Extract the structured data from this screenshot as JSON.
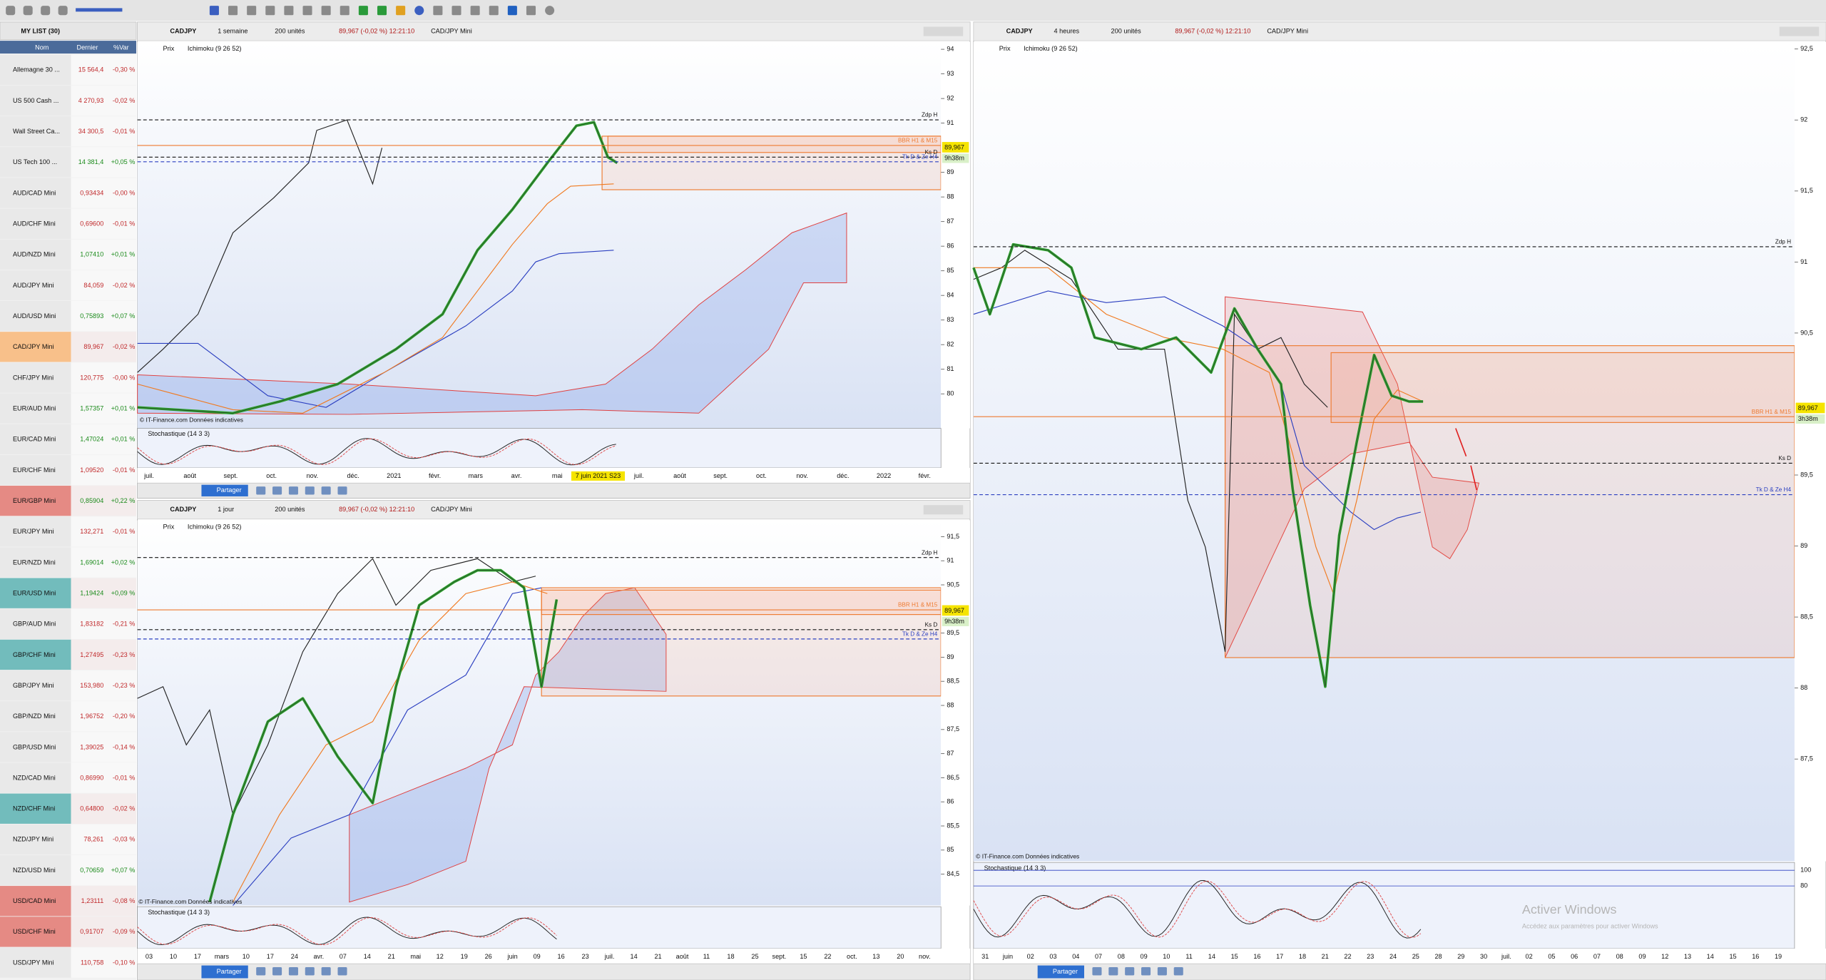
{
  "watchlist": {
    "title": "MY LIST (30)",
    "columns": [
      "Nom",
      "Dernier",
      "%Var"
    ],
    "rows": [
      {
        "name": "Allemagne 30 ...",
        "last": "15 564,4",
        "change": "-0,30 %"
      },
      {
        "name": "US 500 Cash ...",
        "last": "4 270,93",
        "change": "-0,02 %"
      },
      {
        "name": "Wall Street Ca...",
        "last": "34 300,5",
        "change": "-0,01 %"
      },
      {
        "name": "US Tech 100 ...",
        "last": "14 381,4",
        "change": "+0,05 %"
      },
      {
        "name": "AUD/CAD Mini",
        "last": "0,93434",
        "change": "-0,00 %"
      },
      {
        "name": "AUD/CHF Mini",
        "last": "0,69600",
        "change": "-0,01 %"
      },
      {
        "name": "AUD/NZD Mini",
        "last": "1,07410",
        "change": "+0,01 %"
      },
      {
        "name": "AUD/JPY Mini",
        "last": "84,059",
        "change": "-0,02 %"
      },
      {
        "name": "AUD/USD Mini",
        "last": "0,75893",
        "change": "+0,07 %"
      },
      {
        "name": "CAD/JPY Mini",
        "last": "89,967",
        "change": "-0,02 %",
        "color": "#f8c08a"
      },
      {
        "name": "CHF/JPY Mini",
        "last": "120,775",
        "change": "-0,00 %"
      },
      {
        "name": "EUR/AUD Mini",
        "last": "1,57357",
        "change": "+0,01 %"
      },
      {
        "name": "EUR/CAD Mini",
        "last": "1,47024",
        "change": "+0,01 %"
      },
      {
        "name": "EUR/CHF Mini",
        "last": "1,09520",
        "change": "-0,01 %"
      },
      {
        "name": "EUR/GBP Mini",
        "last": "0,85904",
        "change": "+0,22 %",
        "color": "#e58a84"
      },
      {
        "name": "EUR/JPY Mini",
        "last": "132,271",
        "change": "-0,01 %"
      },
      {
        "name": "EUR/NZD Mini",
        "last": "1,69014",
        "change": "+0,02 %"
      },
      {
        "name": "EUR/USD Mini",
        "last": "1,19424",
        "change": "+0,09 %",
        "color": "#72bcbc"
      },
      {
        "name": "GBP/AUD Mini",
        "last": "1,83182",
        "change": "-0,21 %"
      },
      {
        "name": "GBP/CHF Mini",
        "last": "1,27495",
        "change": "-0,23 %",
        "color": "#72bcbc"
      },
      {
        "name": "GBP/JPY Mini",
        "last": "153,980",
        "change": "-0,23 %"
      },
      {
        "name": "GBP/NZD Mini",
        "last": "1,96752",
        "change": "-0,20 %"
      },
      {
        "name": "GBP/USD Mini",
        "last": "1,39025",
        "change": "-0,14 %"
      },
      {
        "name": "NZD/CAD Mini",
        "last": "0,86990",
        "change": "-0,01 %"
      },
      {
        "name": "NZD/CHF Mini",
        "last": "0,64800",
        "change": "-0,02 %",
        "color": "#72bcbc"
      },
      {
        "name": "NZD/JPY Mini",
        "last": "78,261",
        "change": "-0,03 %"
      },
      {
        "name": "NZD/USD Mini",
        "last": "0,70659",
        "change": "+0,07 %"
      },
      {
        "name": "USD/CAD Mini",
        "last": "1,23111",
        "change": "-0,08 %",
        "color": "#e58a84"
      },
      {
        "name": "USD/CHF Mini",
        "last": "0,91707",
        "change": "-0,09 %",
        "color": "#e58a84"
      },
      {
        "name": "USD/JPY Mini",
        "last": "110,758",
        "change": "-0,10 %"
      }
    ]
  },
  "panels": [
    {
      "symbol": "CADJPY",
      "period": "1 semaine",
      "units": "200 unités",
      "quote": "89,967 (-0,02 %) 12:21:10",
      "instrument": "CAD/JPY Mini",
      "indicators": [
        "Prix",
        "Ichimoku (9 26 52)"
      ],
      "ylim": [
        78.6,
        94.3
      ],
      "yticks": [
        94,
        93,
        92,
        91,
        89,
        88,
        87,
        86,
        85,
        84,
        83,
        82,
        81,
        80
      ],
      "xlabels": [
        "juil.",
        "août",
        "sept.",
        "oct.",
        "nov.",
        "déc.",
        "2021",
        "févr.",
        "mars",
        "avr.",
        "mai",
        "7 juin 2021 S23",
        "juil.",
        "août",
        "sept.",
        "oct.",
        "nov.",
        "déc.",
        "2022",
        "févr."
      ],
      "levels": [
        "Zdp H",
        "BBR H1 & M15",
        "Ks D",
        "Tk D & Ze H4"
      ],
      "price_tag": "89,967",
      "timer": "9h38m",
      "oscillator": {
        "name": "Stochastique (14 3 3)"
      },
      "credit": "© IT-Finance.com Données indicatives",
      "share": "Partager"
    },
    {
      "symbol": "CADJPY",
      "period": "1 jour",
      "units": "200 unités",
      "quote": "89,967 (-0,02 %) 12:21:10",
      "instrument": "CAD/JPY Mini",
      "indicators": [
        "Prix",
        "Ichimoku (9 26 52)"
      ],
      "ylim": [
        83.85,
        91.84
      ],
      "yticks": [
        {
          "value": 91.5,
          "label": "91,5"
        },
        91,
        {
          "value": 90.5,
          "label": "90,5"
        },
        {
          "value": 89.5,
          "label": "89,5"
        },
        89,
        {
          "value": 88.5,
          "label": "88,5"
        },
        88,
        {
          "value": 87.5,
          "label": "87,5"
        },
        87,
        {
          "value": 86.5,
          "label": "86,5"
        },
        86,
        {
          "value": 85.5,
          "label": "85,5"
        },
        85,
        {
          "value": 84.5,
          "label": "84,5"
        }
      ],
      "xlabels": [
        "03",
        "10",
        "17",
        "mars",
        "10",
        "17",
        "24",
        "avr.",
        "07",
        "14",
        "21",
        "mai",
        "12",
        "19",
        "26",
        "juin",
        "09",
        "16",
        "23",
        "juil.",
        "14",
        "21",
        "août",
        "11",
        "18",
        "25",
        "sept.",
        "15",
        "22",
        "oct.",
        "13",
        "20",
        "nov."
      ],
      "levels": [
        "Zdp H",
        "BBR H1 & M15",
        "Ks D",
        "Tk D & Ze H4"
      ],
      "price_tag": "89,967",
      "timer": "9h38m",
      "oscillator": {
        "name": "Stochastique (14 3 3)"
      },
      "credit": "© IT-Finance.com Données indicatives",
      "share": "Partager"
    },
    {
      "symbol": "CADJPY",
      "period": "4 heures",
      "units": "200 unités",
      "quote": "89,967 (-0,02 %) 12:21:10",
      "instrument": "CAD/JPY Mini",
      "indicators": [
        "Prix",
        "Ichimoku (9 26 52)"
      ],
      "ylim": [
        86.78,
        92.55
      ],
      "yticks": [
        {
          "value": 92.5,
          "label": "92,5"
        },
        92,
        {
          "value": 91.5,
          "label": "91,5"
        },
        91,
        {
          "value": 90.5,
          "label": "90,5"
        },
        {
          "value": 89.5,
          "label": "89,5"
        },
        89,
        {
          "value": 88.5,
          "label": "88,5"
        },
        88,
        {
          "value": 87.5,
          "label": "87,5"
        }
      ],
      "xlabels": [
        "31",
        "juin",
        "02",
        "03",
        "04",
        "07",
        "08",
        "09",
        "10",
        "11",
        "14",
        "15",
        "16",
        "17",
        "18",
        "21",
        "22",
        "23",
        "24",
        "25",
        "28",
        "29",
        "30",
        "juil.",
        "02",
        "05",
        "06",
        "07",
        "08",
        "09",
        "12",
        "13",
        "14",
        "15",
        "16",
        "19"
      ],
      "levels": [
        "Zdp H",
        "BBR H1 & M15",
        "Ks D",
        "Tk D & Ze H4"
      ],
      "price_tag": "89,967",
      "timer": "3h38m",
      "oscillator": {
        "name": "Stochastique (14 3 3)",
        "ylim": [
          0,
          110
        ],
        "yticks": [
          100,
          80
        ]
      },
      "credit": "© IT-Finance.com Données indicatives",
      "share": "Partager"
    }
  ],
  "watermark": {
    "title": "Activer Windows",
    "text": "Accédez aux paramètres pour activer Windows"
  }
}
